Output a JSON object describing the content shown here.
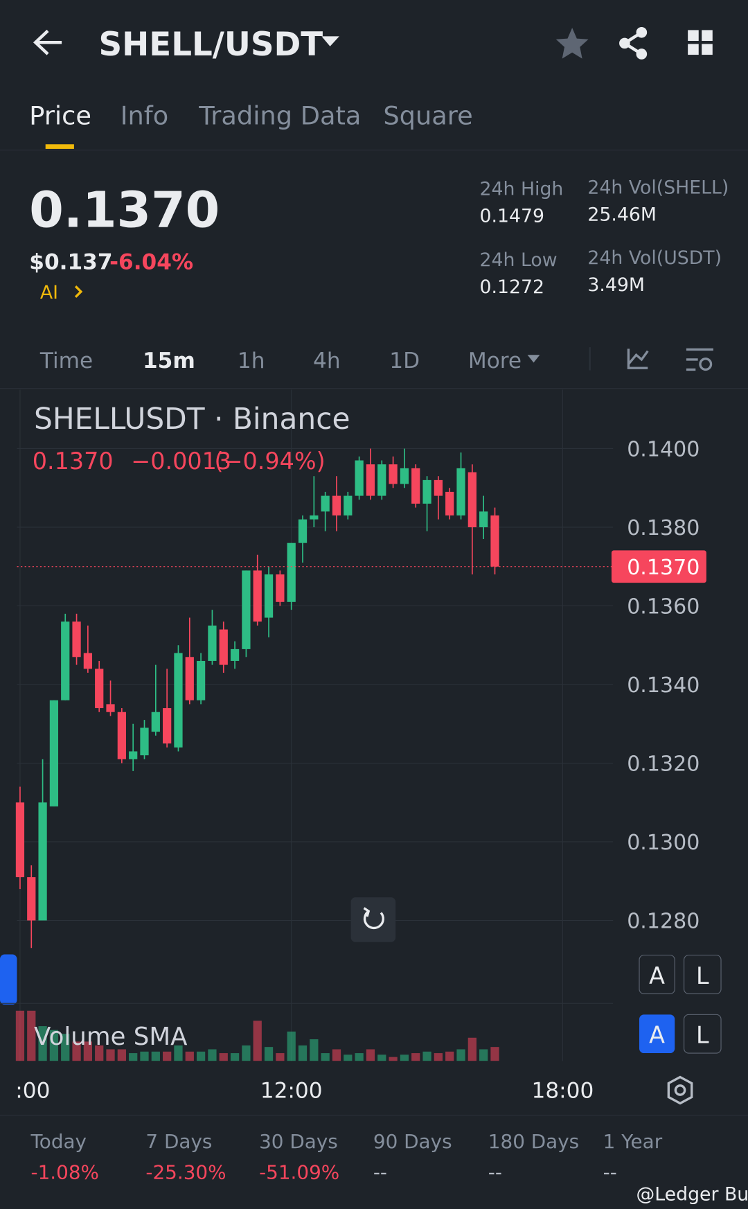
{
  "header": {
    "title": "SHELL/USDT",
    "tabs": [
      "Price",
      "Info",
      "Trading Data",
      "Square"
    ]
  },
  "ticker": {
    "price": "0.1370",
    "usd_price": "$0.137",
    "change": "-6.04%",
    "ai": "AI",
    "stats": [
      {
        "label": "24h High",
        "value": "0.1479"
      },
      {
        "label": "24h Vol(SHELL)",
        "value": "25.46M"
      },
      {
        "label": "24h Low",
        "value": "0.1272"
      },
      {
        "label": "24h Vol(USDT)",
        "value": "3.49M"
      }
    ]
  },
  "intervals": [
    "Time",
    "15m",
    "1h",
    "4h",
    "1D",
    "More"
  ],
  "chart_data": {
    "type": "candlestick",
    "title": "SHELLUSDT · Binance",
    "legend": [
      "0.1370",
      "−0.0013",
      "(−0.94%)"
    ],
    "volume_label": "Volume SMA",
    "buttons": [
      "A",
      "L"
    ],
    "up_color": "#2ebd85",
    "down_color": "#f6465d",
    "grid": true,
    "open": [
      0.131,
      0.1291,
      0.128,
      0.1309,
      0.1336,
      0.1356,
      0.1348,
      0.1344,
      0.1335,
      0.1333,
      0.1321,
      0.1322,
      0.1328,
      0.1334,
      0.1324,
      0.1347,
      0.1336,
      0.1346,
      0.1354,
      0.1346,
      0.1349,
      0.1369,
      0.1357,
      0.1368,
      0.1361,
      0.1376,
      0.1382,
      0.1384,
      0.1388,
      0.1383,
      0.1388,
      0.1396,
      0.1388,
      0.1396,
      0.1391,
      0.1395,
      0.1386,
      0.1392,
      0.1389,
      0.1383,
      0.1394,
      0.138,
      0.1383
    ],
    "high": [
      0.1314,
      0.1294,
      0.1321,
      0.1336,
      0.1358,
      0.1358,
      0.1355,
      0.1346,
      0.1341,
      0.1334,
      0.133,
      0.1331,
      0.1345,
      0.1344,
      0.135,
      0.1357,
      0.1348,
      0.1359,
      0.1356,
      0.1351,
      0.1369,
      0.1373,
      0.137,
      0.1369,
      0.1376,
      0.1383,
      0.1393,
      0.1389,
      0.1393,
      0.1389,
      0.1398,
      0.14,
      0.1397,
      0.1398,
      0.14,
      0.1396,
      0.1393,
      0.1393,
      0.139,
      0.1399,
      0.1396,
      0.1388,
      0.1385
    ],
    "low": [
      0.1288,
      0.1273,
      0.128,
      0.1309,
      0.1336,
      0.1345,
      0.1343,
      0.1333,
      0.1332,
      0.132,
      0.1318,
      0.1321,
      0.1327,
      0.1324,
      0.1323,
      0.1335,
      0.1335,
      0.1345,
      0.1343,
      0.1344,
      0.1347,
      0.1355,
      0.1352,
      0.136,
      0.1359,
      0.1371,
      0.138,
      0.1379,
      0.1379,
      0.1382,
      0.1387,
      0.1387,
      0.1387,
      0.139,
      0.139,
      0.1385,
      0.1379,
      0.1382,
      0.1382,
      0.1382,
      0.1368,
      0.1377,
      0.1368
    ],
    "close": [
      0.1291,
      0.128,
      0.131,
      0.1336,
      0.1356,
      0.1347,
      0.1344,
      0.1334,
      0.1333,
      0.1321,
      0.1323,
      0.1329,
      0.1333,
      0.1325,
      0.1348,
      0.1336,
      0.1346,
      0.1355,
      0.1345,
      0.1349,
      0.1369,
      0.1356,
      0.1368,
      0.1361,
      0.1376,
      0.1382,
      0.1383,
      0.1388,
      0.1383,
      0.1388,
      0.1397,
      0.1388,
      0.1396,
      0.1391,
      0.1395,
      0.1386,
      0.1392,
      0.1388,
      0.1383,
      0.1395,
      0.138,
      0.1384,
      0.137
    ],
    "volumes": [
      65,
      65,
      45,
      40,
      35,
      25,
      25,
      20,
      15,
      15,
      10,
      12,
      12,
      12,
      20,
      12,
      12,
      15,
      10,
      10,
      20,
      52,
      18,
      10,
      38,
      20,
      28,
      10,
      15,
      8,
      10,
      15,
      8,
      5,
      8,
      10,
      12,
      10,
      12,
      15,
      30,
      15,
      18
    ],
    "ylim": [
      0.1259,
      0.1415
    ],
    "yticks": [
      {
        "value": 0.128,
        "label": "0.1280"
      },
      {
        "value": 0.13,
        "label": "0.1300"
      },
      {
        "value": 0.132,
        "label": "0.1320"
      },
      {
        "value": 0.134,
        "label": "0.1340"
      },
      {
        "value": 0.136,
        "label": "0.1360"
      },
      {
        "value": 0.138,
        "label": "0.1380"
      },
      {
        "value": 0.14,
        "label": "0.1400"
      }
    ],
    "last_price": {
      "value": 0.137,
      "label": "0.1370"
    },
    "xticks": [
      {
        "value": 0,
        "label": ":00"
      },
      {
        "value": 24,
        "label": "12:00"
      },
      {
        "value": 48,
        "label": "18:00"
      }
    ]
  },
  "performance": [
    {
      "period": "Today",
      "change": "-1.08%"
    },
    {
      "period": "7 Days",
      "change": "-25.30%"
    },
    {
      "period": "30 Days",
      "change": "-51.09%"
    },
    {
      "period": "90 Days",
      "change": "--"
    },
    {
      "period": "180 Days",
      "change": "--"
    },
    {
      "period": "1 Year",
      "change": "--"
    }
  ],
  "watermark": "@Ledger Bull"
}
